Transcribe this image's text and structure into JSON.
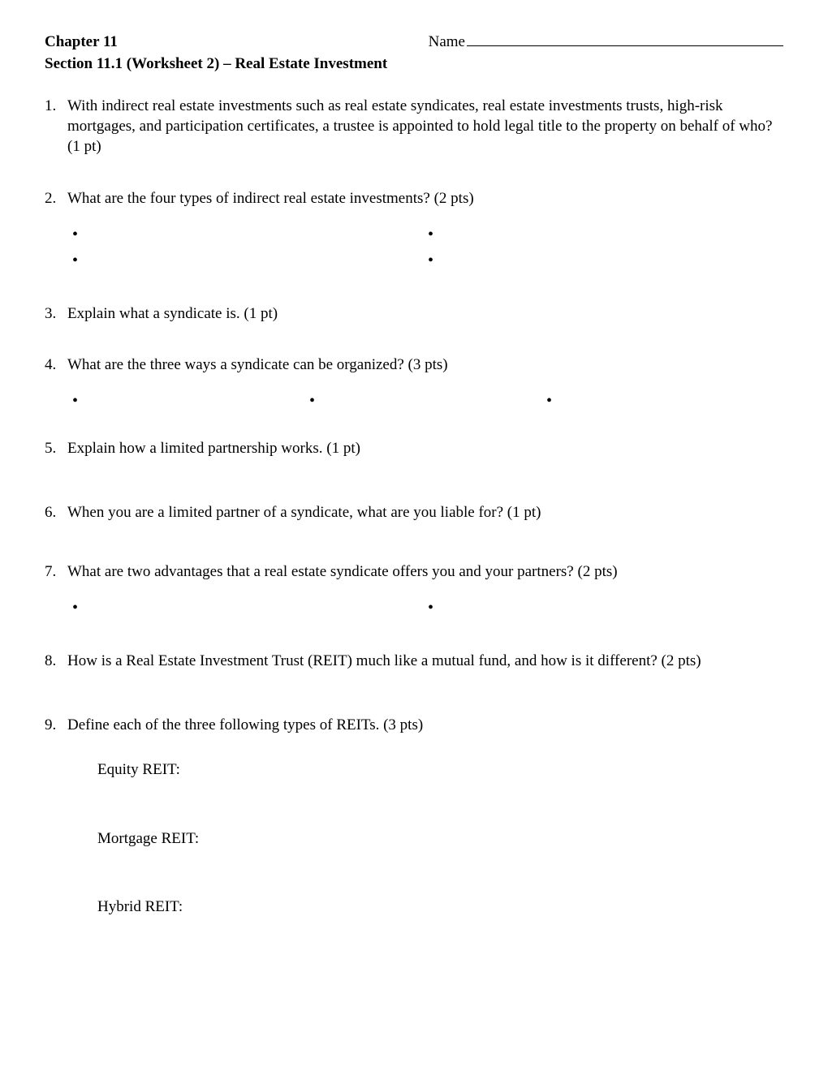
{
  "header": {
    "chapter": "Chapter 11",
    "name_label": "Name",
    "section": "Section 11.1 (Worksheet 2) – Real Estate Investment"
  },
  "questions": {
    "q1": {
      "num": "1.",
      "text": "With indirect real estate investments such as real estate syndicates, real estate investments trusts, high-risk mortgages, and participation certificates, a trustee is appointed to hold legal title to the property on behalf of who? (1 pt)"
    },
    "q2": {
      "num": "2.",
      "text": "What are the four types of indirect real estate investments? (2 pts)"
    },
    "q3": {
      "num": "3.",
      "text": "Explain what a syndicate is. (1 pt)"
    },
    "q4": {
      "num": "4.",
      "text": "What are the three ways a syndicate can be organized?  (3 pts)"
    },
    "q5": {
      "num": "5.",
      "text": "Explain how a limited partnership works.  (1 pt)"
    },
    "q6": {
      "num": "6.",
      "text": "When you are a limited partner of a syndicate, what are you liable for? (1 pt)"
    },
    "q7": {
      "num": "7.",
      "text": "What are two advantages that a real estate syndicate offers you and your partners? (2 pts)"
    },
    "q8": {
      "num": "8.",
      "text": "How is a Real Estate Investment Trust (REIT) much like a mutual fund, and how is it different? (2 pts)"
    },
    "q9": {
      "num": "9.",
      "text": "Define each of the three following types of REITs. (3 pts)"
    }
  },
  "reits": {
    "equity": "Equity REIT:",
    "mortgage": "Mortgage REIT:",
    "hybrid": "Hybrid REIT:"
  },
  "bullet": "•"
}
